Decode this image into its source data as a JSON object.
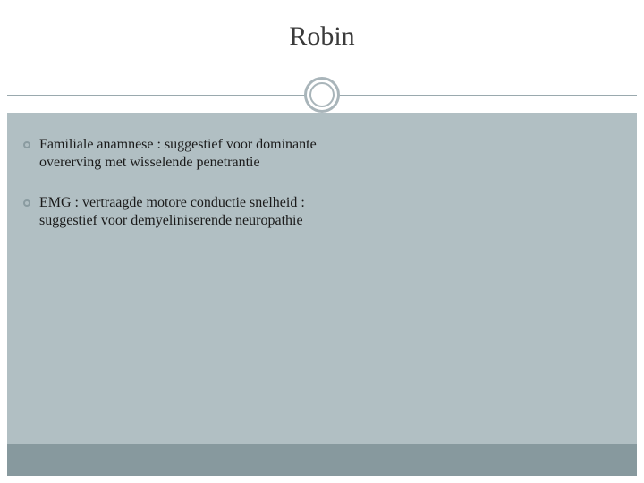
{
  "slide": {
    "title": "Robin",
    "bullets": [
      {
        "text": "Familiale anamnese : suggestief voor dominante overerving met wisselende penetrantie"
      },
      {
        "text": "EMG : vertraagde motore conductie snelheid : suggestief voor demyeliniserende neuropathie"
      }
    ]
  },
  "style": {
    "background_color": "#ffffff",
    "body_background": "#b1bfc3",
    "footer_background": "#87999e",
    "divider_color": "#9aa9ae",
    "ornament_border": "#a9b5ba",
    "bullet_border": "#8a9ba0",
    "title_color": "#3a3a3a",
    "text_color": "#1a1a1a",
    "title_fontsize": 30,
    "body_fontsize": 16,
    "font_family": "Georgia, serif"
  }
}
